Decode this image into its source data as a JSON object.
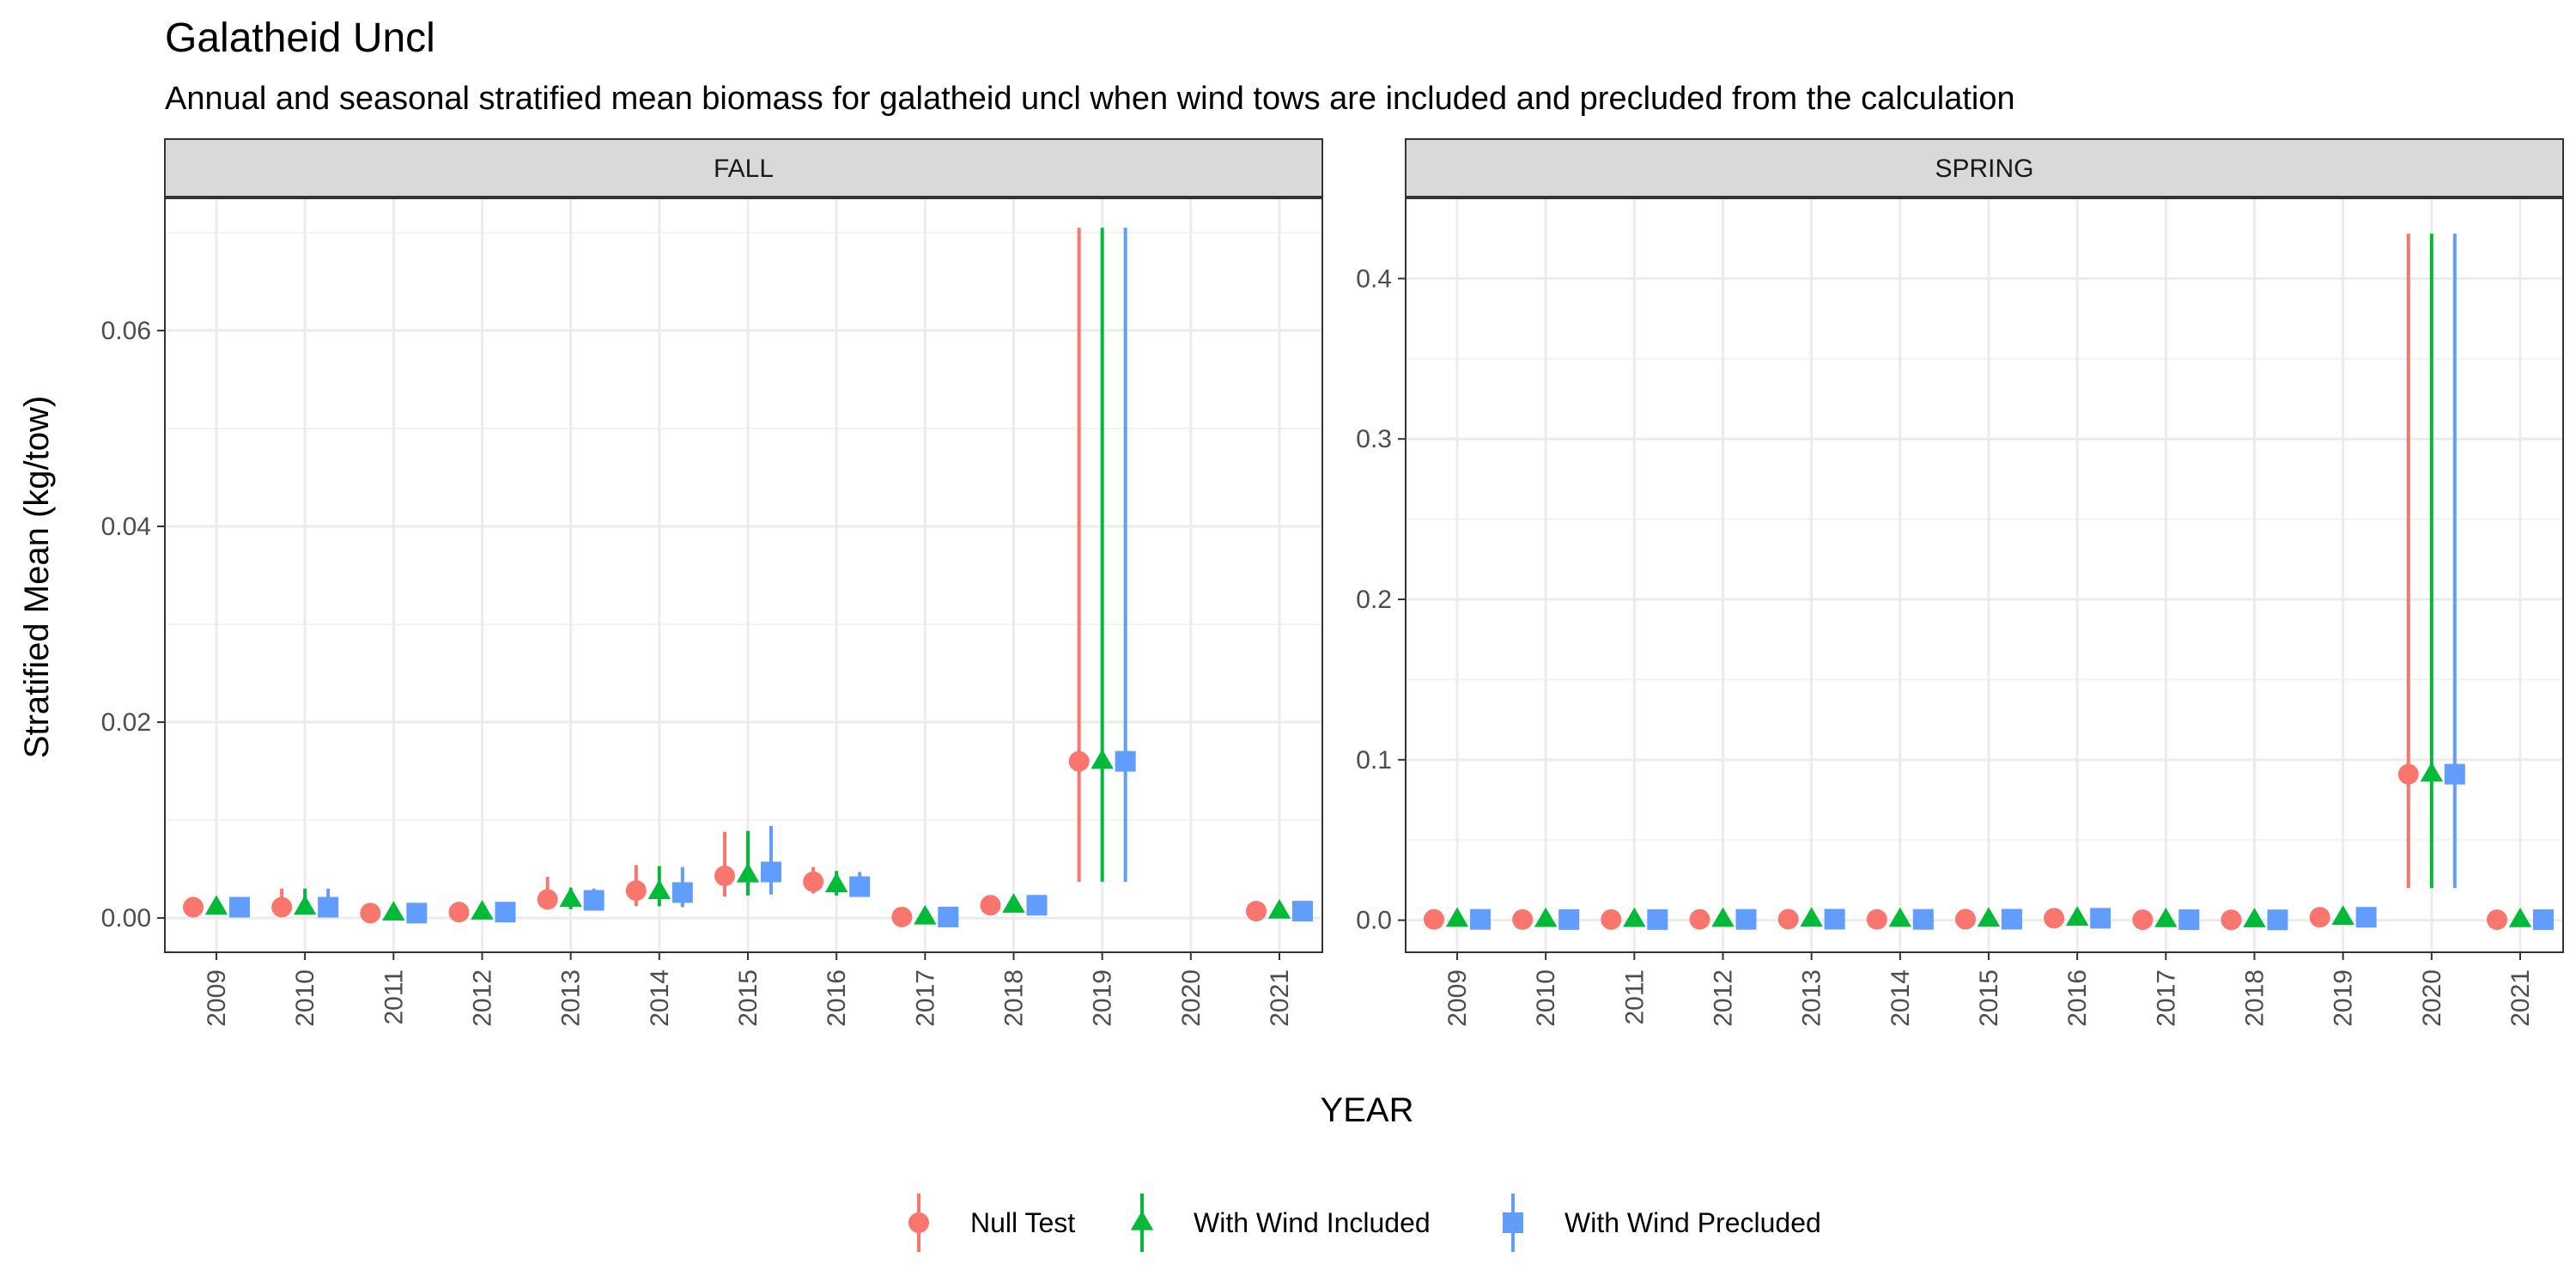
{
  "title": "Galatheid Uncl",
  "subtitle": "Annual and seasonal stratified mean biomass for galatheid uncl when wind tows are included and precluded from the calculation",
  "chart_data": {
    "type": "scatter",
    "xlabel": "YEAR",
    "ylabel": "Stratified Mean (kg/tow)",
    "grid": true,
    "legend_position": "bottom",
    "series": [
      {
        "name": "Null Test",
        "color": "#F8766D",
        "shape": "circle"
      },
      {
        "name": "With Wind Included",
        "color": "#00BA38",
        "shape": "triangle"
      },
      {
        "name": "With Wind Precluded",
        "color": "#619CFF",
        "shape": "square"
      }
    ],
    "panels": [
      {
        "strip": "FALL",
        "ylim": [
          -0.0035,
          0.0735
        ],
        "yticks": [
          0.0,
          0.02,
          0.04,
          0.06
        ],
        "ytick_labels": [
          "0.00",
          "0.02",
          "0.04",
          "0.06"
        ],
        "years": [
          "2009",
          "2010",
          "2011",
          "2012",
          "2013",
          "2014",
          "2015",
          "2016",
          "2017",
          "2018",
          "2019",
          "2020",
          "2021"
        ],
        "points": [
          {
            "year": "2009",
            "values": [
              {
                "mean": 0.0011,
                "low": 0.0008,
                "high": 0.0014
              },
              {
                "mean": 0.0011,
                "low": 0.0008,
                "high": 0.0014
              },
              {
                "mean": 0.0011,
                "low": 0.0008,
                "high": 0.0014
              }
            ]
          },
          {
            "year": "2010",
            "values": [
              {
                "mean": 0.0011,
                "low": 0.0004,
                "high": 0.003
              },
              {
                "mean": 0.0011,
                "low": 0.0004,
                "high": 0.003
              },
              {
                "mean": 0.0011,
                "low": 0.0004,
                "high": 0.003
              }
            ]
          },
          {
            "year": "2011",
            "values": [
              {
                "mean": 0.0005,
                "low": 0.0003,
                "high": 0.0007
              },
              {
                "mean": 0.0005,
                "low": 0.0003,
                "high": 0.0007
              },
              {
                "mean": 0.0005,
                "low": 0.0003,
                "high": 0.0007
              }
            ]
          },
          {
            "year": "2012",
            "values": [
              {
                "mean": 0.0006,
                "low": 0.0004,
                "high": 0.0009
              },
              {
                "mean": 0.0006,
                "low": 0.0004,
                "high": 0.0009
              },
              {
                "mean": 0.0006,
                "low": 0.0004,
                "high": 0.0009
              }
            ]
          },
          {
            "year": "2013",
            "values": [
              {
                "mean": 0.0019,
                "low": 0.0009,
                "high": 0.0042
              },
              {
                "mean": 0.0019,
                "low": 0.0009,
                "high": 0.0031
              },
              {
                "mean": 0.0018,
                "low": 0.0009,
                "high": 0.003
              }
            ]
          },
          {
            "year": "2014",
            "values": [
              {
                "mean": 0.0028,
                "low": 0.0012,
                "high": 0.0054
              },
              {
                "mean": 0.0027,
                "low": 0.0012,
                "high": 0.0053
              },
              {
                "mean": 0.0026,
                "low": 0.0011,
                "high": 0.0052
              }
            ]
          },
          {
            "year": "2015",
            "values": [
              {
                "mean": 0.0043,
                "low": 0.0022,
                "high": 0.0088
              },
              {
                "mean": 0.0044,
                "low": 0.0023,
                "high": 0.0089
              },
              {
                "mean": 0.0047,
                "low": 0.0024,
                "high": 0.0094
              }
            ]
          },
          {
            "year": "2016",
            "values": [
              {
                "mean": 0.0037,
                "low": 0.0025,
                "high": 0.0052
              },
              {
                "mean": 0.0034,
                "low": 0.0023,
                "high": 0.0048
              },
              {
                "mean": 0.0032,
                "low": 0.0022,
                "high": 0.0047
              }
            ]
          },
          {
            "year": "2017",
            "values": [
              {
                "mean": 0.0001,
                "low": 0.0,
                "high": 0.0003
              },
              {
                "mean": 0.0001,
                "low": 0.0,
                "high": 0.0003
              },
              {
                "mean": 0.0001,
                "low": 0.0,
                "high": 0.0003
              }
            ]
          },
          {
            "year": "2018",
            "values": [
              {
                "mean": 0.0013,
                "low": 0.0009,
                "high": 0.0017
              },
              {
                "mean": 0.0013,
                "low": 0.0009,
                "high": 0.0017
              },
              {
                "mean": 0.0013,
                "low": 0.0009,
                "high": 0.0017
              }
            ]
          },
          {
            "year": "2019",
            "values": [
              {
                "mean": 0.016,
                "low": 0.0037,
                "high": 0.0705
              },
              {
                "mean": 0.016,
                "low": 0.0037,
                "high": 0.0705
              },
              {
                "mean": 0.016,
                "low": 0.0037,
                "high": 0.0705
              }
            ]
          },
          {
            "year": "2021",
            "values": [
              {
                "mean": 0.0007,
                "low": 0.0005,
                "high": 0.001
              },
              {
                "mean": 0.0007,
                "low": 0.0005,
                "high": 0.001
              },
              {
                "mean": 0.0007,
                "low": 0.0005,
                "high": 0.001
              }
            ]
          }
        ]
      },
      {
        "strip": "SPRING",
        "ylim": [
          -0.02,
          0.45
        ],
        "yticks": [
          0.0,
          0.1,
          0.2,
          0.3,
          0.4
        ],
        "ytick_labels": [
          "0.0",
          "0.1",
          "0.2",
          "0.3",
          "0.4"
        ],
        "years": [
          "2009",
          "2010",
          "2011",
          "2012",
          "2013",
          "2014",
          "2015",
          "2016",
          "2017",
          "2018",
          "2019",
          "2020",
          "2021"
        ],
        "points": [
          {
            "year": "2009",
            "values": [
              {
                "mean": 0.0005,
                "low": 0.0002,
                "high": 0.001
              },
              {
                "mean": 0.0005,
                "low": 0.0002,
                "high": 0.001
              },
              {
                "mean": 0.0005,
                "low": 0.0002,
                "high": 0.001
              }
            ]
          },
          {
            "year": "2010",
            "values": [
              {
                "mean": 0.0004,
                "low": 0.0002,
                "high": 0.0008
              },
              {
                "mean": 0.0004,
                "low": 0.0002,
                "high": 0.0008
              },
              {
                "mean": 0.0004,
                "low": 0.0002,
                "high": 0.0008
              }
            ]
          },
          {
            "year": "2011",
            "values": [
              {
                "mean": 0.0004,
                "low": 0.0002,
                "high": 0.0008
              },
              {
                "mean": 0.0004,
                "low": 0.0002,
                "high": 0.0008
              },
              {
                "mean": 0.0004,
                "low": 0.0002,
                "high": 0.0008
              }
            ]
          },
          {
            "year": "2012",
            "values": [
              {
                "mean": 0.0005,
                "low": 0.0002,
                "high": 0.001
              },
              {
                "mean": 0.0005,
                "low": 0.0002,
                "high": 0.001
              },
              {
                "mean": 0.0005,
                "low": 0.0002,
                "high": 0.001
              }
            ]
          },
          {
            "year": "2013",
            "values": [
              {
                "mean": 0.0006,
                "low": 0.0002,
                "high": 0.0012
              },
              {
                "mean": 0.0006,
                "low": 0.0002,
                "high": 0.0012
              },
              {
                "mean": 0.0006,
                "low": 0.0002,
                "high": 0.0012
              }
            ]
          },
          {
            "year": "2014",
            "values": [
              {
                "mean": 0.0005,
                "low": 0.0002,
                "high": 0.001
              },
              {
                "mean": 0.0005,
                "low": 0.0002,
                "high": 0.001
              },
              {
                "mean": 0.0005,
                "low": 0.0002,
                "high": 0.001
              }
            ]
          },
          {
            "year": "2015",
            "values": [
              {
                "mean": 0.0006,
                "low": 0.0002,
                "high": 0.0012
              },
              {
                "mean": 0.0006,
                "low": 0.0002,
                "high": 0.0012
              },
              {
                "mean": 0.0006,
                "low": 0.0002,
                "high": 0.0012
              }
            ]
          },
          {
            "year": "2016",
            "values": [
              {
                "mean": 0.0012,
                "low": 0.0005,
                "high": 0.0022
              },
              {
                "mean": 0.0012,
                "low": 0.0005,
                "high": 0.0022
              },
              {
                "mean": 0.0012,
                "low": 0.0005,
                "high": 0.0022
              }
            ]
          },
          {
            "year": "2017",
            "values": [
              {
                "mean": 0.0003,
                "low": 0.0001,
                "high": 0.0006
              },
              {
                "mean": 0.0003,
                "low": 0.0001,
                "high": 0.0006
              },
              {
                "mean": 0.0003,
                "low": 0.0001,
                "high": 0.0006
              }
            ]
          },
          {
            "year": "2018",
            "values": [
              {
                "mean": 0.0002,
                "low": 0.0001,
                "high": 0.0004
              },
              {
                "mean": 0.0002,
                "low": 0.0001,
                "high": 0.0004
              },
              {
                "mean": 0.0002,
                "low": 0.0001,
                "high": 0.0004
              }
            ]
          },
          {
            "year": "2019",
            "values": [
              {
                "mean": 0.0018,
                "low": 0.0008,
                "high": 0.0035
              },
              {
                "mean": 0.0018,
                "low": 0.0008,
                "high": 0.0035
              },
              {
                "mean": 0.0018,
                "low": 0.0008,
                "high": 0.0035
              }
            ]
          },
          {
            "year": "2020",
            "values": [
              {
                "mean": 0.091,
                "low": 0.02,
                "high": 0.428
              },
              {
                "mean": 0.091,
                "low": 0.02,
                "high": 0.428
              },
              {
                "mean": 0.091,
                "low": 0.02,
                "high": 0.428
              }
            ]
          },
          {
            "year": "2021",
            "values": [
              {
                "mean": 0.0003,
                "low": 0.0001,
                "high": 0.0006
              },
              {
                "mean": 0.0003,
                "low": 0.0001,
                "high": 0.0006
              },
              {
                "mean": 0.0003,
                "low": 0.0001,
                "high": 0.0006
              }
            ]
          }
        ]
      }
    ]
  }
}
